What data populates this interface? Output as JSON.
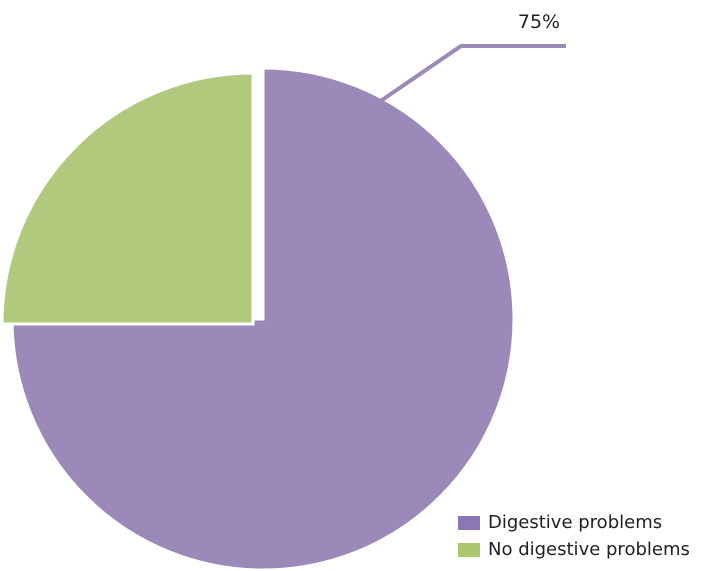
{
  "chart_data": {
    "type": "pie",
    "title": "",
    "start_angle": 0,
    "slices": [
      {
        "label": "Digestive problems",
        "value": 75,
        "color": "#9b89b9",
        "data_label": "75%"
      },
      {
        "label": "No digestive problems",
        "value": 25,
        "color": "#b1c97c",
        "data_label": ""
      }
    ],
    "legend": {
      "position": "bottom-right",
      "swatch_colors": [
        "#8a77b3",
        "#a9c86f"
      ]
    },
    "exploded": "No digestive problems"
  }
}
